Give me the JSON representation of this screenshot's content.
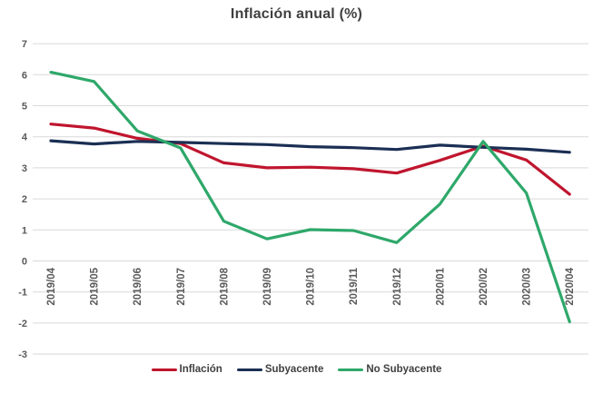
{
  "chart_data": {
    "type": "line",
    "title": "Inflación anual (%)",
    "categories": [
      "2019/04",
      "2019/05",
      "2019/06",
      "2019/07",
      "2019/08",
      "2019/09",
      "2019/10",
      "2019/11",
      "2019/12",
      "2020/01",
      "2020/02",
      "2020/03",
      "2020/04"
    ],
    "series": [
      {
        "name": "Inflación",
        "color": "#C0152E",
        "values": [
          4.41,
          4.28,
          3.95,
          3.78,
          3.16,
          3.0,
          3.02,
          2.97,
          2.83,
          3.24,
          3.7,
          3.25,
          2.15
        ]
      },
      {
        "name": "Subyacente",
        "color": "#1B2F54",
        "values": [
          3.87,
          3.77,
          3.85,
          3.82,
          3.78,
          3.75,
          3.68,
          3.65,
          3.59,
          3.73,
          3.66,
          3.6,
          3.5
        ]
      },
      {
        "name": "No Subyacente",
        "color": "#2EA86A",
        "values": [
          6.08,
          5.78,
          4.19,
          3.64,
          1.28,
          0.71,
          1.01,
          0.98,
          0.59,
          1.83,
          3.85,
          2.19,
          -1.96
        ]
      }
    ],
    "ylim": [
      -3,
      7
    ],
    "yticks": [
      7,
      6,
      5,
      4,
      3,
      2,
      1,
      0,
      -1,
      -2,
      -3
    ],
    "grid": true,
    "legend_position": "bottom",
    "x_label_rotation": -90,
    "colors": {
      "grid": "#D9D9D9",
      "tick_label": "#595959",
      "title": "#404040",
      "legend_text": "#404040",
      "background": "#FFFFFF"
    }
  }
}
